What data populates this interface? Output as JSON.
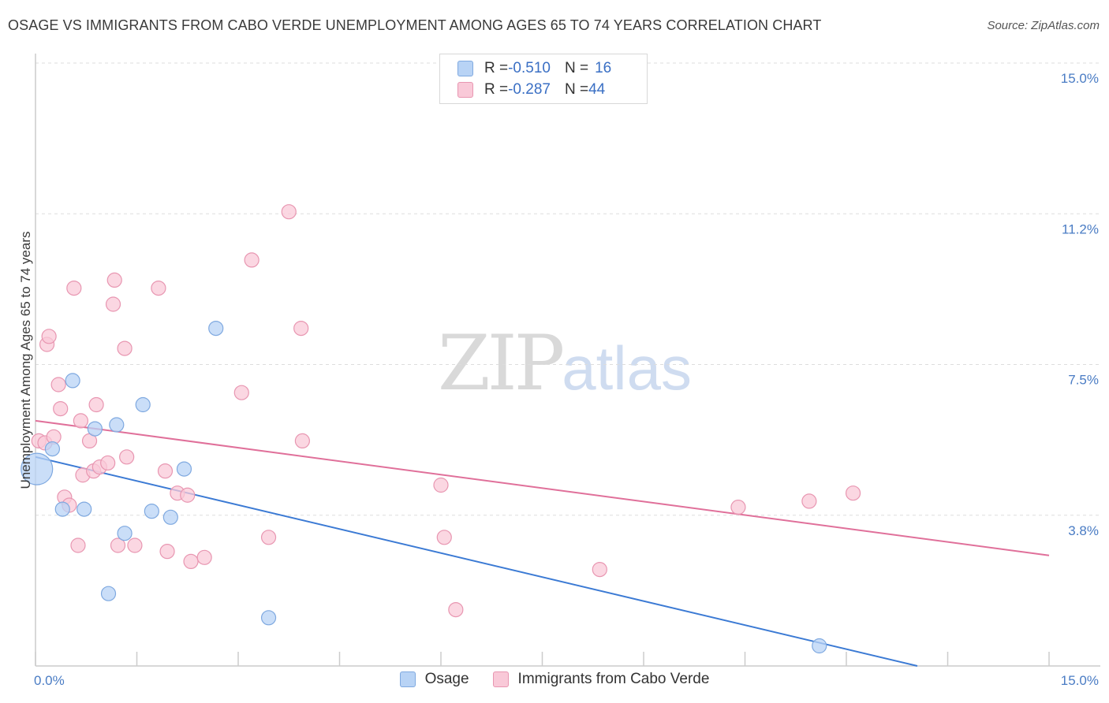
{
  "header": {
    "title": "OSAGE VS IMMIGRANTS FROM CABO VERDE UNEMPLOYMENT AMONG AGES 65 TO 74 YEARS CORRELATION CHART",
    "source": "Source: ZipAtlas.com"
  },
  "watermark": {
    "zip": "ZIP",
    "atlas": "atlas"
  },
  "legend": {
    "rows": [
      {
        "r_label": "R = ",
        "r_value": "-0.510",
        "n_label": "N = ",
        "n_value": "16"
      },
      {
        "r_label": "R = ",
        "r_value": "-0.287",
        "n_label": "N = ",
        "n_value": "44"
      }
    ]
  },
  "bottom_legend": {
    "series1": "Osage",
    "series2": "Immigrants from Cabo Verde"
  },
  "colors": {
    "osage_fill": "#b8d3f5",
    "osage_stroke": "#7fa9e0",
    "osage_line": "#3b7ad4",
    "cabo_fill": "#f9c9d8",
    "cabo_stroke": "#e896b1",
    "cabo_line": "#e0709a",
    "tick_text": "#4a7cc4",
    "grid": "#dddddd"
  },
  "chart_data": {
    "type": "scatter",
    "title": "OSAGE VS IMMIGRANTS FROM CABO VERDE UNEMPLOYMENT AMONG AGES 65 TO 74 YEARS CORRELATION CHART",
    "xlabel": "",
    "ylabel": "Unemployment Among Ages 65 to 74 years",
    "xlim": [
      0,
      15.0
    ],
    "ylim": [
      0,
      15.0
    ],
    "x_tick_labels": [
      "0.0%",
      "15.0%"
    ],
    "y_ticks": [
      {
        "value": 15.0,
        "label": "15.0%"
      },
      {
        "value": 11.25,
        "label": "11.2%"
      },
      {
        "value": 7.5,
        "label": "7.5%"
      },
      {
        "value": 3.75,
        "label": "3.8%"
      }
    ],
    "series": [
      {
        "name": "Osage",
        "points": [
          [
            0.02,
            4.9,
            20
          ],
          [
            0.25,
            5.4,
            9
          ],
          [
            0.4,
            3.9,
            9
          ],
          [
            0.55,
            7.1,
            9
          ],
          [
            0.72,
            3.9,
            9
          ],
          [
            0.88,
            5.9,
            9
          ],
          [
            1.08,
            1.8,
            9
          ],
          [
            1.2,
            6.0,
            9
          ],
          [
            1.32,
            3.3,
            9
          ],
          [
            1.59,
            6.5,
            9
          ],
          [
            1.72,
            3.85,
            9
          ],
          [
            2.0,
            3.7,
            9
          ],
          [
            2.2,
            4.9,
            9
          ],
          [
            2.67,
            8.4,
            9
          ],
          [
            3.45,
            1.2,
            9
          ],
          [
            11.6,
            0.5,
            9
          ]
        ],
        "trend": {
          "x": [
            0.0,
            13.05
          ],
          "y": [
            5.2,
            0.0
          ]
        }
      },
      {
        "name": "Immigrants from Cabo Verde",
        "points": [
          [
            0.05,
            5.6,
            9
          ],
          [
            0.14,
            5.55,
            9
          ],
          [
            0.17,
            8.0,
            9
          ],
          [
            0.2,
            8.2,
            9
          ],
          [
            0.27,
            5.7,
            9
          ],
          [
            0.34,
            7.0,
            9
          ],
          [
            0.37,
            6.4,
            9
          ],
          [
            0.43,
            4.2,
            9
          ],
          [
            0.5,
            4.0,
            9
          ],
          [
            0.57,
            9.4,
            9
          ],
          [
            0.63,
            3.0,
            9
          ],
          [
            0.67,
            6.1,
            9
          ],
          [
            0.7,
            4.75,
            9
          ],
          [
            0.8,
            5.6,
            9
          ],
          [
            0.86,
            4.85,
            9
          ],
          [
            0.9,
            6.5,
            9
          ],
          [
            0.95,
            4.95,
            9
          ],
          [
            1.07,
            5.05,
            9
          ],
          [
            1.15,
            9.0,
            9
          ],
          [
            1.17,
            9.6,
            9
          ],
          [
            1.22,
            3.0,
            9
          ],
          [
            1.32,
            7.9,
            9
          ],
          [
            1.35,
            5.2,
            9
          ],
          [
            1.47,
            3.0,
            9
          ],
          [
            1.82,
            9.4,
            9
          ],
          [
            1.92,
            4.85,
            9
          ],
          [
            1.95,
            2.85,
            9
          ],
          [
            2.1,
            4.3,
            9
          ],
          [
            2.25,
            4.25,
            9
          ],
          [
            2.3,
            2.6,
            9
          ],
          [
            2.5,
            2.7,
            9
          ],
          [
            3.05,
            6.8,
            9
          ],
          [
            3.2,
            10.1,
            9
          ],
          [
            3.45,
            3.2,
            9
          ],
          [
            3.75,
            11.3,
            9
          ],
          [
            3.93,
            8.4,
            9
          ],
          [
            3.95,
            5.6,
            9
          ],
          [
            6.0,
            4.5,
            9
          ],
          [
            6.05,
            3.2,
            9
          ],
          [
            6.22,
            1.4,
            9
          ],
          [
            8.35,
            2.4,
            9
          ],
          [
            10.4,
            3.95,
            9
          ],
          [
            11.45,
            4.1,
            9
          ],
          [
            12.1,
            4.3,
            9
          ]
        ],
        "trend": {
          "x": [
            0.0,
            15.0
          ],
          "y": [
            6.1,
            2.75
          ]
        }
      }
    ]
  }
}
